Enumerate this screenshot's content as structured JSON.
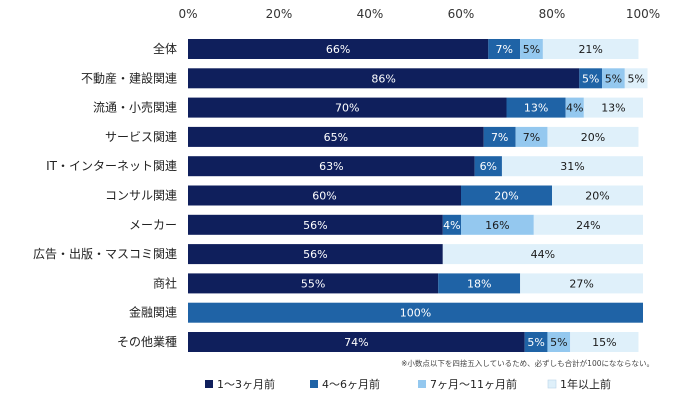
{
  "chart_data": {
    "type": "bar",
    "orientation": "horizontal",
    "stacked": true,
    "xlim": [
      0,
      100
    ],
    "x_ticks": [
      "0%",
      "20%",
      "40%",
      "60%",
      "80%",
      "100%"
    ],
    "categories": [
      "全体",
      "不動産・建設関連",
      "流通・小売関連",
      "サービス関連",
      "IT・インターネット関連",
      "コンサル関連",
      "メーカー",
      "広告・出版・マスコミ関連",
      "商社",
      "金融関連",
      "その他業種"
    ],
    "series": [
      {
        "name": "1～3ヶ月前",
        "color": "#0f1f5c",
        "values": [
          66,
          86,
          70,
          65,
          63,
          60,
          56,
          56,
          55,
          0,
          74
        ],
        "labels": [
          "66%",
          "86%",
          "70%",
          "65%",
          "63%",
          "60%",
          "56%",
          "56%",
          "55%",
          "",
          "74%"
        ]
      },
      {
        "name": "4～6ヶ月前",
        "color": "#1f63a6",
        "values": [
          7,
          5,
          13,
          7,
          6,
          20,
          4,
          0,
          18,
          100,
          5
        ],
        "labels": [
          "7%",
          "5%",
          "13%",
          "7%",
          "6%",
          "20%",
          "4%",
          "",
          "18%",
          "100%",
          "5%"
        ]
      },
      {
        "name": "7ヶ月～11ヶ月前",
        "color": "#94c8ef",
        "values": [
          5,
          5,
          4,
          7,
          0,
          0,
          16,
          0,
          0,
          0,
          5
        ],
        "labels": [
          "5%",
          "5%",
          "4%",
          "7%",
          "",
          "",
          "16%",
          "",
          "",
          "",
          "5%"
        ]
      },
      {
        "name": "1年以上前",
        "color": "#dff0fa",
        "values": [
          21,
          5,
          13,
          20,
          31,
          20,
          24,
          44,
          27,
          0,
          15
        ],
        "labels": [
          "21%",
          "5%",
          "13%",
          "20%",
          "31%",
          "20%",
          "24%",
          "44%",
          "27%",
          "",
          "15%"
        ]
      }
    ],
    "note": "※小数点以下を四捨五入しているため、必ずしも合計が100になならない。",
    "legend_position": "bottom",
    "grid": false
  }
}
